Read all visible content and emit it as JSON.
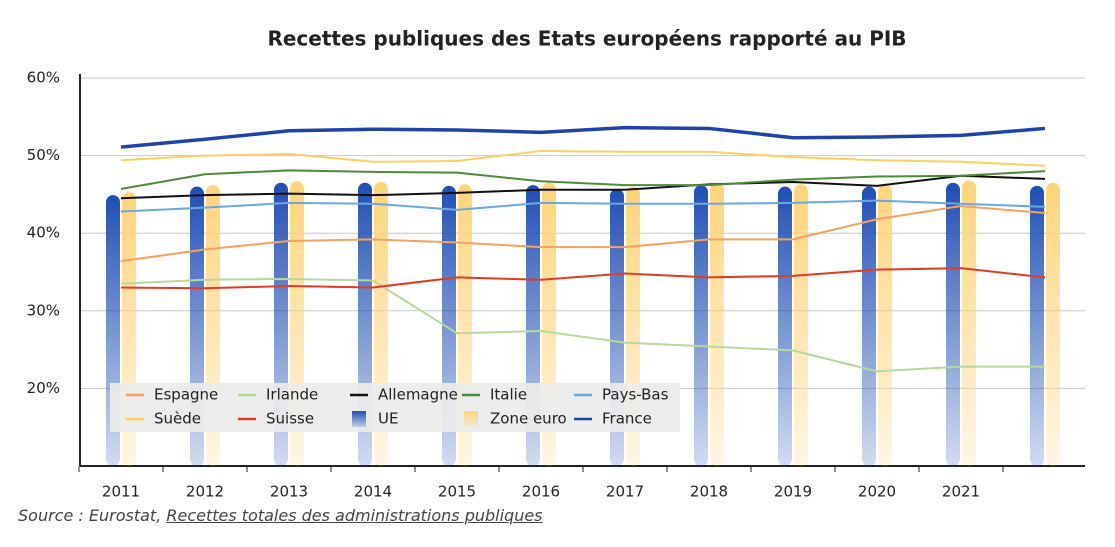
{
  "chart_data": {
    "type": "bar-line",
    "title": "Recettes publiques des Etats européens rapporté au PIB",
    "categories": [
      "2011",
      "2012",
      "2013",
      "2014",
      "2015",
      "2016",
      "2017",
      "2018",
      "2019",
      "2020",
      "2021",
      null
    ],
    "ylim": [
      10,
      60
    ],
    "yticks": [
      {
        "value": 20,
        "label": "20%"
      },
      {
        "value": 30,
        "label": "30%"
      },
      {
        "value": 40,
        "label": "40%"
      },
      {
        "value": 50,
        "label": "50%"
      },
      {
        "value": 60,
        "label": "60%"
      }
    ],
    "grid": true,
    "legend": "bottom-left",
    "series": [
      {
        "name": "Espagne",
        "kind": "line",
        "color": "#f4a261",
        "values": [
          36.4,
          37.9,
          39.0,
          39.2,
          38.8,
          38.2,
          38.2,
          39.2,
          39.2,
          41.8,
          43.5,
          42.6
        ]
      },
      {
        "name": "Irlande",
        "kind": "line",
        "color": "#b5d99c",
        "values": [
          33.5,
          34.0,
          34.1,
          33.9,
          27.1,
          27.4,
          25.9,
          25.4,
          24.9,
          22.2,
          22.8,
          22.8
        ]
      },
      {
        "name": "Allemagne",
        "kind": "line",
        "color": "#111111",
        "values": [
          44.5,
          44.9,
          45.1,
          44.9,
          45.2,
          45.6,
          45.6,
          46.3,
          46.6,
          46.1,
          47.4,
          47.0
        ]
      },
      {
        "name": "Italie",
        "kind": "line",
        "color": "#4f8a3a",
        "values": [
          45.7,
          47.6,
          48.1,
          47.9,
          47.8,
          46.7,
          46.2,
          46.2,
          46.9,
          47.3,
          47.4,
          48.0
        ]
      },
      {
        "name": "Pays-Bas",
        "kind": "line",
        "color": "#6aa8e0",
        "values": [
          42.8,
          43.3,
          43.9,
          43.8,
          43.0,
          43.9,
          43.8,
          43.8,
          43.9,
          44.2,
          43.8,
          43.4
        ]
      },
      {
        "name": "Suède",
        "kind": "line",
        "color": "#f7d25c",
        "values": [
          49.4,
          50.0,
          50.2,
          49.2,
          49.3,
          50.6,
          50.5,
          50.5,
          49.8,
          49.4,
          49.2,
          48.7
        ]
      },
      {
        "name": "Suisse",
        "kind": "line",
        "color": "#e03b24",
        "values": [
          33.0,
          32.9,
          33.2,
          33.0,
          34.3,
          34.0,
          34.8,
          34.3,
          34.5,
          35.3,
          35.5,
          34.3
        ]
      },
      {
        "name": "UE",
        "kind": "bar",
        "color": "#1f4fb5",
        "values": [
          44.9,
          46.0,
          46.5,
          46.5,
          46.1,
          46.2,
          45.7,
          46.2,
          46.0,
          46.0,
          46.5,
          46.1
        ]
      },
      {
        "name": "Zone euro",
        "kind": "bar",
        "color": "#ffd47a",
        "values": [
          45.3,
          46.2,
          46.7,
          46.6,
          46.3,
          46.5,
          46.0,
          46.5,
          46.3,
          46.3,
          46.8,
          46.5
        ]
      },
      {
        "name": "France",
        "kind": "line",
        "color": "#1f43a8",
        "values": [
          51.1,
          52.1,
          53.2,
          53.4,
          53.3,
          53.0,
          53.6,
          53.5,
          52.3,
          52.4,
          52.6,
          53.5
        ]
      }
    ],
    "source": {
      "prefix": "Source : Eurostat,",
      "link": "Recettes totales des administrations publiques"
    }
  }
}
